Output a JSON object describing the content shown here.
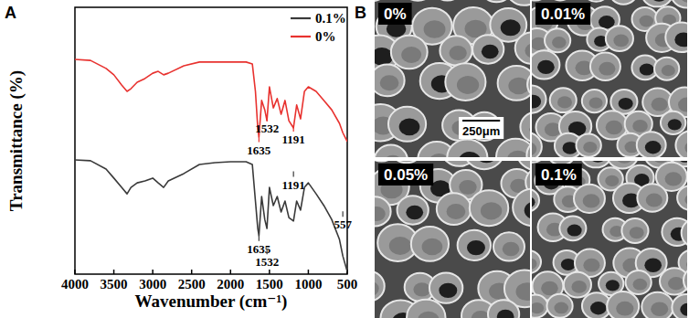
{
  "chart_data": {
    "type": "line",
    "title": "A",
    "x_label": "Wavenumber (cm⁻¹)",
    "y_label": "Transmittance (%)",
    "x": [
      4000,
      3800,
      3600,
      3500,
      3400,
      3330,
      3280,
      3200,
      3100,
      3000,
      2930,
      2860,
      2800,
      2600,
      2400,
      2200,
      2000,
      1800,
      1720,
      1680,
      1650,
      1635,
      1600,
      1560,
      1532,
      1500,
      1450,
      1400,
      1350,
      1300,
      1250,
      1191,
      1150,
      1100,
      1050,
      1000,
      900,
      800,
      700,
      600,
      557,
      500
    ],
    "series": [
      {
        "name": "0.1%",
        "color": "#3a3a3a",
        "values": [
          42.8,
          42.5,
          39.4,
          36.0,
          32.5,
          30.1,
          32.5,
          34.2,
          34.9,
          36.0,
          34.2,
          32.5,
          34.9,
          37.7,
          41.1,
          41.8,
          42.1,
          42.1,
          41.1,
          27.4,
          17.1,
          14.4,
          29.1,
          20.5,
          17.1,
          32.5,
          25.7,
          29.1,
          23.3,
          27.4,
          21.2,
          19.9,
          27.4,
          24.0,
          32.5,
          34.2,
          30.1,
          25.7,
          20.5,
          13.0,
          6.8,
          1.0
        ]
      },
      {
        "name": "0%",
        "color": "#e8322f",
        "values": [
          80.5,
          80.1,
          77.1,
          74.7,
          70.9,
          68.5,
          69.5,
          71.9,
          73.3,
          75.3,
          76.0,
          74.7,
          75.3,
          78.1,
          79.5,
          79.5,
          79.5,
          79.5,
          78.8,
          68.5,
          54.8,
          51.4,
          65.1,
          61.6,
          57.5,
          70.2,
          62.3,
          65.8,
          59.9,
          65.1,
          57.5,
          54.8,
          63.4,
          58.2,
          68.5,
          70.2,
          68.5,
          65.1,
          61.6,
          56.5,
          53.0,
          49.7
        ]
      }
    ],
    "xlim": [
      4000,
      500
    ],
    "xticks": [
      4000,
      3500,
      3000,
      2500,
      2000,
      1500,
      1000,
      500
    ],
    "ylim": [
      0,
      100
    ],
    "tick_labels": "x",
    "legend": "upper right",
    "annotations": [
      {
        "text": "1635",
        "x": 1635,
        "y": 45,
        "color": "#e8322f"
      },
      {
        "text": "1532",
        "x": 1532,
        "y": 53,
        "color": "#e8322f"
      },
      {
        "text": "1191",
        "x": 1191,
        "y": 49,
        "color": "#e8322f"
      },
      {
        "text": "1635",
        "x": 1635,
        "y": 8,
        "color": "#3a3a3a"
      },
      {
        "text": "1532",
        "x": 1532,
        "y": 3,
        "color": "#3a3a3a"
      },
      {
        "text": "1191",
        "x": 1191,
        "y": 32,
        "color": "#3a3a3a"
      },
      {
        "text": "557",
        "x": 557,
        "y": 17,
        "color": "#3a3a3a"
      }
    ]
  },
  "sem_images": {
    "panel_label": "B",
    "images": [
      "0%",
      "0.01%",
      "0.05%",
      "0.1%"
    ],
    "scale_bar": "250μm"
  }
}
